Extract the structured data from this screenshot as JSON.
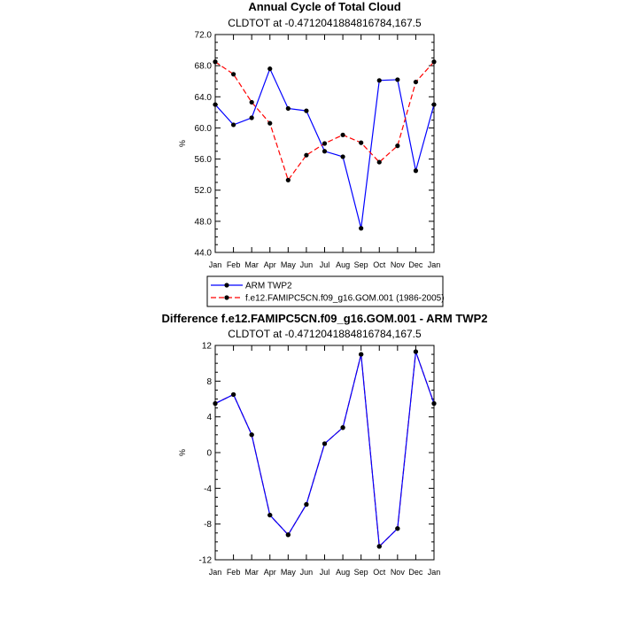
{
  "chart_data": [
    {
      "type": "line",
      "title": "Annual Cycle of Total Cloud",
      "subtitle": "CLDTOT at -0.4712041884816784,167.5",
      "ylabel": "%",
      "xlabel": "",
      "categories": [
        "Jan",
        "Feb",
        "Mar",
        "Apr",
        "May",
        "Jun",
        "Jul",
        "Aug",
        "Sep",
        "Oct",
        "Nov",
        "Dec",
        "Jan"
      ],
      "ylim": [
        44.0,
        72.0
      ],
      "yticks": [
        "44.0",
        "48.0",
        "52.0",
        "56.0",
        "60.0",
        "64.0",
        "68.0",
        "72.0"
      ],
      "series": [
        {
          "name": "ARM TWP2",
          "color": "#0000ff",
          "style": "solid",
          "values": [
            63.0,
            60.4,
            61.3,
            67.6,
            62.5,
            62.2,
            57.0,
            56.3,
            47.1,
            66.1,
            66.2,
            54.5,
            63.0
          ]
        },
        {
          "name": "f.e12.FAMIPC5CN.f09_g16.GOM.001 (1986-2005)",
          "color": "#ff0000",
          "style": "dashed",
          "values": [
            68.5,
            66.9,
            63.3,
            60.6,
            53.3,
            56.5,
            58.0,
            59.1,
            58.1,
            55.6,
            57.7,
            65.9,
            68.5
          ]
        }
      ],
      "legend_position": "bottom"
    },
    {
      "type": "line",
      "title": "Difference f.e12.FAMIPC5CN.f09_g16.GOM.001 - ARM TWP2",
      "subtitle": "CLDTOT at -0.4712041884816784,167.5",
      "ylabel": "%",
      "xlabel": "",
      "categories": [
        "Jan",
        "Feb",
        "Mar",
        "Apr",
        "May",
        "Jun",
        "Jul",
        "Aug",
        "Sep",
        "Oct",
        "Nov",
        "Dec",
        "Jan"
      ],
      "ylim": [
        -12,
        12
      ],
      "yticks": [
        "-12",
        "-8",
        "-4",
        "0",
        "4",
        "8",
        "12"
      ],
      "series": [
        {
          "color": "#0000ff",
          "style": "solid",
          "values": [
            5.5,
            6.5,
            2.0,
            -7.0,
            -9.2,
            -5.8,
            1.0,
            2.8,
            11.0,
            -10.5,
            -8.5,
            11.3,
            5.5
          ]
        },
        {
          "color": "#ff0000",
          "style": "dashed",
          "values": [
            5.5,
            6.5,
            2.0,
            -7.0,
            -9.2,
            -5.8,
            1.0,
            2.8,
            11.0,
            -10.5,
            -8.5,
            11.3,
            5.5
          ]
        }
      ]
    }
  ]
}
